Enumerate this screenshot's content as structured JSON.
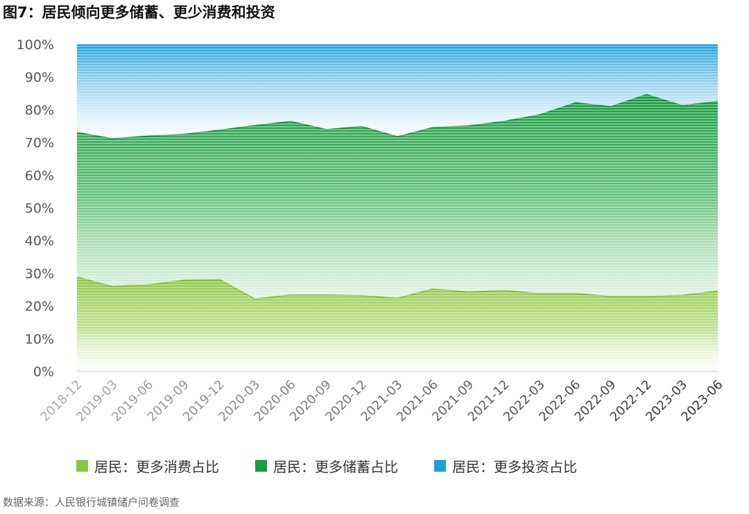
{
  "figure_title": "图7：居民倾向更多储蓄、更少消费和投资",
  "source": "数据来源：人民银行城镇储户问卷调查",
  "colors": {
    "consume": "#8cc63f",
    "save": "#1a9e3f",
    "invest": "#1aa3d9",
    "axis_text": "#555555",
    "gridline": "#cccccc"
  },
  "chart_data": {
    "type": "area",
    "stacked": true,
    "percent": true,
    "categories": [
      "2018-12",
      "2019-03",
      "2019-06",
      "2019-09",
      "2019-12",
      "2020-03",
      "2020-06",
      "2020-09",
      "2020-12",
      "2021-03",
      "2021-06",
      "2021-09",
      "2021-12",
      "2022-03",
      "2022-06",
      "2022-09",
      "2022-12",
      "2023-03",
      "2023-06"
    ],
    "series": [
      {
        "name": "居民：更多消费占比",
        "values": [
          28.8,
          25.9,
          26.4,
          27.8,
          28.0,
          22.1,
          23.3,
          23.3,
          23.1,
          22.3,
          25.1,
          24.2,
          24.7,
          23.7,
          23.8,
          22.8,
          22.8,
          23.2,
          24.5
        ]
      },
      {
        "name": "居民：更多储蓄占比",
        "values": [
          44.2,
          45.2,
          45.5,
          44.6,
          45.7,
          53.0,
          53.1,
          50.6,
          51.7,
          49.4,
          49.4,
          50.8,
          51.7,
          54.7,
          58.3,
          58.1,
          61.8,
          58.0,
          58.0
        ]
      },
      {
        "name": "居民：更多投资占比",
        "values": [
          27.0,
          28.9,
          28.1,
          27.6,
          26.3,
          24.9,
          23.6,
          26.1,
          25.2,
          28.3,
          25.5,
          25.0,
          23.6,
          21.6,
          17.9,
          19.1,
          15.4,
          18.8,
          17.5
        ]
      }
    ],
    "ylim": [
      0,
      100
    ],
    "yticks": [
      "0%",
      "10%",
      "20%",
      "30%",
      "40%",
      "50%",
      "60%",
      "70%",
      "80%",
      "90%",
      "100%"
    ],
    "legend_position": "bottom",
    "grid": false
  }
}
